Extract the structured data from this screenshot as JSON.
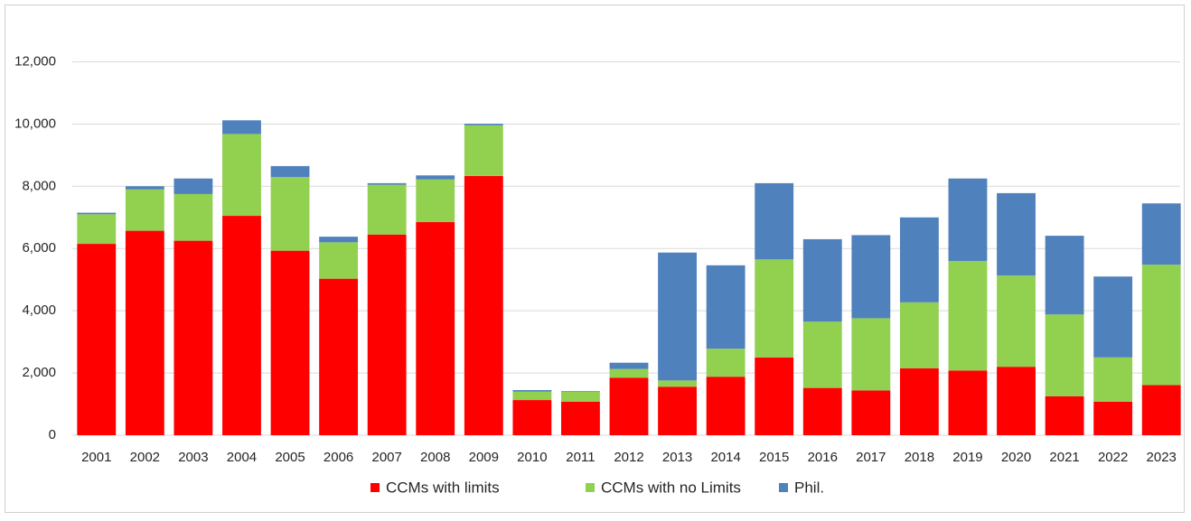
{
  "chart_data": {
    "type": "stacked_bar",
    "categories": [
      "2001",
      "2002",
      "2003",
      "2004",
      "2005",
      "2006",
      "2007",
      "2008",
      "2009",
      "2010",
      "2011",
      "2012",
      "2013",
      "2014",
      "2015",
      "2016",
      "2017",
      "2018",
      "2019",
      "2020",
      "2021",
      "2022",
      "2023"
    ],
    "series": [
      {
        "name": "CCMs with limits",
        "color": "#ff0000",
        "values": [
          6150,
          6570,
          6250,
          7050,
          5930,
          5030,
          6450,
          6850,
          8330,
          1130,
          1080,
          1850,
          1560,
          1880,
          2500,
          1520,
          1440,
          2150,
          2080,
          2200,
          1250,
          1080,
          1610
        ]
      },
      {
        "name": "CCMs with no Limits",
        "color": "#92d050",
        "values": [
          950,
          1330,
          1500,
          2630,
          2370,
          1170,
          1600,
          1370,
          1630,
          270,
          320,
          280,
          200,
          900,
          3150,
          2130,
          2320,
          2120,
          3520,
          2930,
          2630,
          1420,
          3870
        ]
      },
      {
        "name": "Phil.",
        "color": "#4f81bd",
        "values": [
          50,
          100,
          500,
          440,
          350,
          180,
          50,
          130,
          50,
          50,
          20,
          200,
          4110,
          2680,
          2450,
          2650,
          2670,
          2730,
          2650,
          2650,
          2530,
          2600,
          1970
        ]
      }
    ],
    "ylim": [
      0,
      13000
    ],
    "yticks": [
      0,
      {
        "value": 2000,
        "label": "2,000"
      },
      {
        "value": 4000,
        "label": "4,000"
      },
      {
        "value": 6000,
        "label": "6,000"
      },
      {
        "value": 8000,
        "label": "8,000"
      },
      {
        "value": 10000,
        "label": "10,000"
      },
      {
        "value": 12000,
        "label": "12,000"
      }
    ],
    "grid": true,
    "legend": "bottom"
  }
}
